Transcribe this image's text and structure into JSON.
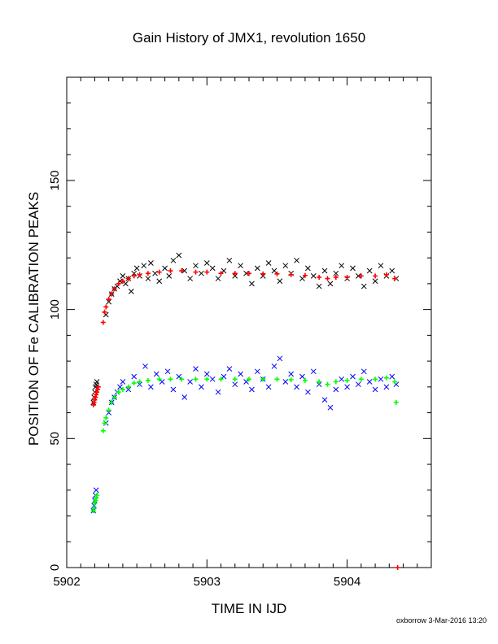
{
  "chart_data": {
    "type": "scatter",
    "title": "Gain History of JMX1, revolution 1650",
    "xlabel": "TIME IN IJD",
    "ylabel": "POSITION OF Fe CALIBRATION PEAKS",
    "xlim": [
      5902,
      5904.6
    ],
    "ylim": [
      0,
      190
    ],
    "xticks": [
      5902,
      5903,
      5904
    ],
    "yticks": [
      0,
      50,
      100,
      150
    ],
    "grid": false,
    "footer": "oxborrow  3-Mar-2016 13:20",
    "series": [
      {
        "marker": "x",
        "color": "#000000",
        "points": [
          [
            5902.19,
            64
          ],
          [
            5902.195,
            66
          ],
          [
            5902.2,
            68
          ],
          [
            5902.205,
            70
          ],
          [
            5902.21,
            71
          ],
          [
            5902.215,
            72
          ],
          [
            5902.28,
            98
          ],
          [
            5902.3,
            103
          ],
          [
            5902.32,
            106
          ],
          [
            5902.34,
            108
          ],
          [
            5902.36,
            109
          ],
          [
            5902.38,
            111
          ],
          [
            5902.4,
            113
          ],
          [
            5902.42,
            110
          ],
          [
            5902.44,
            112
          ],
          [
            5902.46,
            107
          ],
          [
            5902.48,
            114
          ],
          [
            5902.5,
            116
          ],
          [
            5902.52,
            113
          ],
          [
            5902.55,
            117
          ],
          [
            5902.58,
            112
          ],
          [
            5902.6,
            118
          ],
          [
            5902.63,
            114
          ],
          [
            5902.66,
            111
          ],
          [
            5902.7,
            116
          ],
          [
            5902.73,
            113
          ],
          [
            5902.76,
            119
          ],
          [
            5902.8,
            121
          ],
          [
            5902.84,
            115
          ],
          [
            5902.88,
            112
          ],
          [
            5902.92,
            117
          ],
          [
            5902.96,
            114
          ],
          [
            5903.0,
            118
          ],
          [
            5903.04,
            116
          ],
          [
            5903.08,
            112
          ],
          [
            5903.12,
            115
          ],
          [
            5903.16,
            119
          ],
          [
            5903.2,
            113
          ],
          [
            5903.24,
            117
          ],
          [
            5903.28,
            114
          ],
          [
            5903.32,
            110
          ],
          [
            5903.36,
            116
          ],
          [
            5903.4,
            113
          ],
          [
            5903.44,
            118
          ],
          [
            5903.48,
            115
          ],
          [
            5903.52,
            111
          ],
          [
            5903.56,
            117
          ],
          [
            5903.6,
            114
          ],
          [
            5903.64,
            119
          ],
          [
            5903.68,
            112
          ],
          [
            5903.72,
            116
          ],
          [
            5903.76,
            113
          ],
          [
            5903.8,
            109
          ],
          [
            5903.84,
            115
          ],
          [
            5903.88,
            110
          ],
          [
            5903.92,
            114
          ],
          [
            5903.96,
            117
          ],
          [
            5904.0,
            112
          ],
          [
            5904.04,
            116
          ],
          [
            5904.08,
            113
          ],
          [
            5904.12,
            109
          ],
          [
            5904.16,
            115
          ],
          [
            5904.2,
            111
          ],
          [
            5904.24,
            117
          ],
          [
            5904.28,
            113
          ],
          [
            5904.32,
            115
          ],
          [
            5904.35,
            112
          ]
        ]
      },
      {
        "marker": "+",
        "color": "#ff0000",
        "points": [
          [
            5902.19,
            63
          ],
          [
            5902.195,
            64
          ],
          [
            5902.2,
            65
          ],
          [
            5902.205,
            66
          ],
          [
            5902.21,
            67
          ],
          [
            5902.215,
            68
          ],
          [
            5902.22,
            69
          ],
          [
            5902.225,
            70
          ],
          [
            5902.26,
            95
          ],
          [
            5902.27,
            99
          ],
          [
            5902.28,
            101
          ],
          [
            5902.3,
            104
          ],
          [
            5902.32,
            106
          ],
          [
            5902.34,
            108
          ],
          [
            5902.37,
            110
          ],
          [
            5902.4,
            111
          ],
          [
            5902.44,
            112
          ],
          [
            5902.48,
            113
          ],
          [
            5902.52,
            113.5
          ],
          [
            5902.58,
            114
          ],
          [
            5902.66,
            114.5
          ],
          [
            5902.74,
            115
          ],
          [
            5902.82,
            115
          ],
          [
            5902.92,
            114.5
          ],
          [
            5903.0,
            114.5
          ],
          [
            5903.1,
            114
          ],
          [
            5903.2,
            114
          ],
          [
            5903.3,
            114
          ],
          [
            5903.4,
            113.8
          ],
          [
            5903.5,
            113.8
          ],
          [
            5903.6,
            113.5
          ],
          [
            5903.7,
            113.2
          ],
          [
            5903.8,
            112.5
          ],
          [
            5903.86,
            112
          ],
          [
            5903.92,
            112.5
          ],
          [
            5904.0,
            112.5
          ],
          [
            5904.1,
            113
          ],
          [
            5904.2,
            113
          ],
          [
            5904.28,
            113.5
          ],
          [
            5904.34,
            112
          ],
          [
            5904.36,
            0
          ]
        ]
      },
      {
        "marker": "x",
        "color": "#0000ff",
        "points": [
          [
            5902.19,
            22
          ],
          [
            5902.195,
            24
          ],
          [
            5902.2,
            26
          ],
          [
            5902.205,
            28
          ],
          [
            5902.21,
            30
          ],
          [
            5902.28,
            56
          ],
          [
            5902.3,
            60
          ],
          [
            5902.32,
            64
          ],
          [
            5902.34,
            66
          ],
          [
            5902.36,
            68
          ],
          [
            5902.38,
            70
          ],
          [
            5902.4,
            72
          ],
          [
            5902.44,
            69
          ],
          [
            5902.48,
            74
          ],
          [
            5902.52,
            71
          ],
          [
            5902.56,
            78
          ],
          [
            5902.6,
            70
          ],
          [
            5902.64,
            75
          ],
          [
            5902.68,
            72
          ],
          [
            5902.72,
            76
          ],
          [
            5902.76,
            69
          ],
          [
            5902.8,
            74
          ],
          [
            5902.84,
            66
          ],
          [
            5902.88,
            72
          ],
          [
            5902.92,
            77
          ],
          [
            5902.96,
            70
          ],
          [
            5903.0,
            75
          ],
          [
            5903.04,
            73
          ],
          [
            5903.08,
            68
          ],
          [
            5903.12,
            74
          ],
          [
            5903.16,
            77
          ],
          [
            5903.2,
            71
          ],
          [
            5903.24,
            75
          ],
          [
            5903.28,
            72
          ],
          [
            5903.32,
            69
          ],
          [
            5903.36,
            76
          ],
          [
            5903.4,
            73
          ],
          [
            5903.44,
            70
          ],
          [
            5903.48,
            78
          ],
          [
            5903.52,
            81
          ],
          [
            5903.56,
            72
          ],
          [
            5903.6,
            75
          ],
          [
            5903.64,
            70
          ],
          [
            5903.68,
            74
          ],
          [
            5903.72,
            68
          ],
          [
            5903.76,
            76
          ],
          [
            5903.8,
            71
          ],
          [
            5903.84,
            65
          ],
          [
            5903.88,
            62
          ],
          [
            5903.92,
            69
          ],
          [
            5903.96,
            73
          ],
          [
            5904.0,
            70
          ],
          [
            5904.04,
            74
          ],
          [
            5904.08,
            71
          ],
          [
            5904.12,
            76
          ],
          [
            5904.16,
            72
          ],
          [
            5904.2,
            69
          ],
          [
            5904.24,
            73
          ],
          [
            5904.28,
            70
          ],
          [
            5904.32,
            74
          ],
          [
            5904.35,
            71
          ]
        ]
      },
      {
        "marker": "+",
        "color": "#00ff00",
        "points": [
          [
            5902.19,
            22
          ],
          [
            5902.195,
            23
          ],
          [
            5902.2,
            25
          ],
          [
            5902.205,
            26
          ],
          [
            5902.21,
            27
          ],
          [
            5902.215,
            28
          ],
          [
            5902.26,
            53
          ],
          [
            5902.27,
            56
          ],
          [
            5902.28,
            58
          ],
          [
            5902.3,
            61
          ],
          [
            5902.32,
            64
          ],
          [
            5902.34,
            66
          ],
          [
            5902.37,
            68
          ],
          [
            5902.4,
            69
          ],
          [
            5902.44,
            70
          ],
          [
            5902.48,
            71.5
          ],
          [
            5902.52,
            72
          ],
          [
            5902.58,
            72.5
          ],
          [
            5902.66,
            73
          ],
          [
            5902.74,
            73
          ],
          [
            5902.82,
            73
          ],
          [
            5902.92,
            73
          ],
          [
            5903.0,
            73
          ],
          [
            5903.1,
            73
          ],
          [
            5903.2,
            73
          ],
          [
            5903.3,
            73
          ],
          [
            5903.4,
            73
          ],
          [
            5903.5,
            73
          ],
          [
            5903.6,
            72.8
          ],
          [
            5903.7,
            72.5
          ],
          [
            5903.8,
            72
          ],
          [
            5903.86,
            71
          ],
          [
            5903.92,
            72
          ],
          [
            5904.0,
            72.5
          ],
          [
            5904.1,
            73
          ],
          [
            5904.2,
            73
          ],
          [
            5904.28,
            73.5
          ],
          [
            5904.34,
            72
          ],
          [
            5904.35,
            64
          ]
        ]
      }
    ]
  }
}
